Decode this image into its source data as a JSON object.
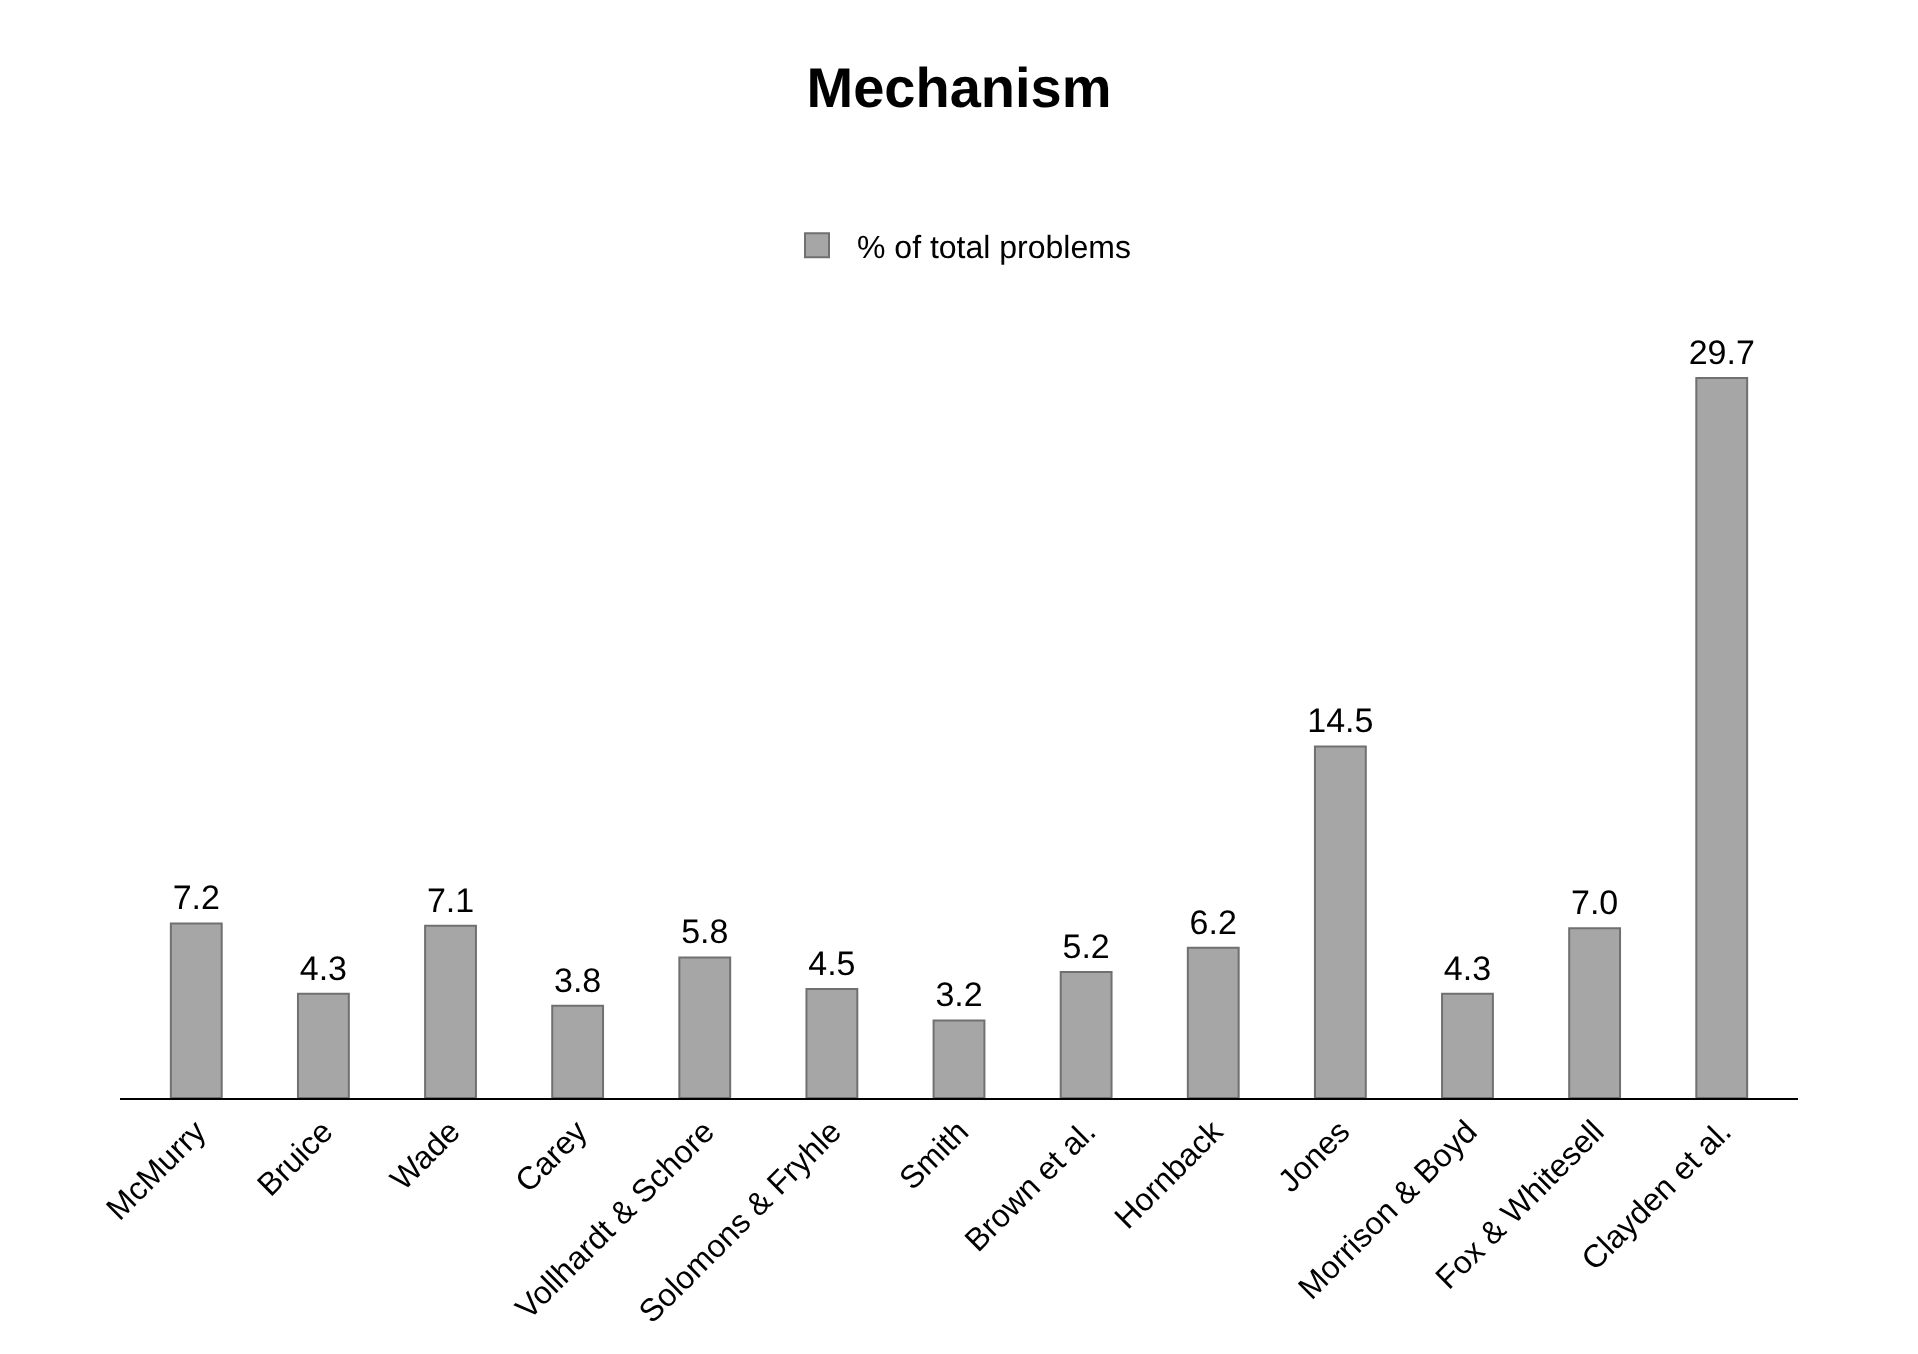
{
  "chart_data": {
    "type": "bar",
    "title": "Mechanism",
    "categories": [
      "McMurry",
      "Bruice",
      "Wade",
      "Carey",
      "Vollhardt & Schore",
      "Solomons & Fryhle",
      "Smith",
      "Brown et al.",
      "Hornback",
      "Jones",
      "Morrison & Boyd",
      "Fox & Whitesell",
      "Clayden et al."
    ],
    "series": [
      {
        "name": "% of total problems",
        "color": "#a6a6a6",
        "values": [
          7.2,
          4.3,
          7.1,
          3.8,
          5.8,
          4.5,
          3.2,
          5.2,
          6.2,
          14.5,
          4.3,
          7.0,
          29.7
        ],
        "value_labels": [
          "7.2",
          "4.3",
          "7.1",
          "3.8",
          "5.8",
          "4.5",
          "3.2",
          "5.2",
          "6.2",
          "14.5",
          "4.3",
          "7.0",
          "29.7"
        ]
      }
    ],
    "legend": "top",
    "tick_labels": "x"
  }
}
